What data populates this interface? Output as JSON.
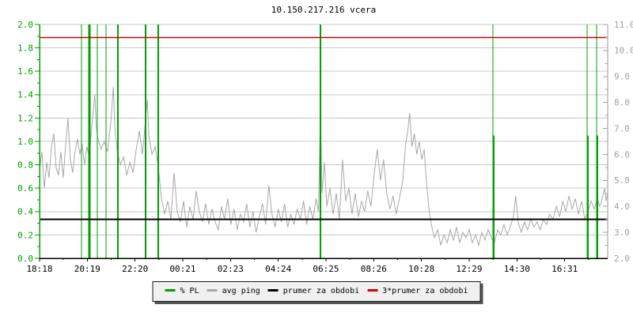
{
  "title": "10.150.217.216 vcera",
  "legend": {
    "items": [
      {
        "name": "pl",
        "label": "% PL",
        "color": "#00a000"
      },
      {
        "name": "avg-ping",
        "label": "avg ping",
        "color": "#a8a8a8"
      },
      {
        "name": "period-avg",
        "label": "prumer za obdobi",
        "color": "#000000"
      },
      {
        "name": "period-3avg",
        "label": "3*prumer za obdobi",
        "color": "#dd0000"
      }
    ]
  },
  "chart_data": {
    "type": "line",
    "title": "10.150.217.216 vcera",
    "grid": "horizontal gridlines only",
    "legend_position": "bottom center",
    "x_axis": {
      "start_time": "18:18",
      "total_minutes": 1440,
      "tick_interval_minutes": 121,
      "tick_labels": [
        "18:18",
        "20:19",
        "22:20",
        "00:21",
        "02:23",
        "04:24",
        "06:25",
        "08:26",
        "10:28",
        "12:29",
        "14:30",
        "16:31"
      ],
      "label_color": "#000000"
    },
    "y_left": {
      "units": "% packet loss",
      "min": 0.0,
      "max": 2.0,
      "major_step": 0.2,
      "minor_step": 0.1,
      "tick_labels": [
        "2.0",
        "1.8",
        "1.6",
        "1.4",
        "1.2",
        "1.0",
        "0.8",
        "0.6",
        "0.4",
        "0.2",
        "0.0"
      ],
      "color": "#00a000"
    },
    "y_right": {
      "units": "ms",
      "min": 2.0,
      "max": 11.0,
      "major_step": 1.0,
      "minor_step": 0.5,
      "tick_labels": [
        "11.0",
        "10.0",
        "9.0",
        "8.0",
        "7.0",
        "6.0",
        "5.0",
        "4.0",
        "3.0",
        "2.0"
      ],
      "color": "#a0a0a0"
    },
    "series": [
      {
        "name": "% PL",
        "type": "bar",
        "axis": "left",
        "color": "#00a000",
        "points_min_pct_width": [
          [
            106,
            2,
            1
          ],
          [
            126,
            2,
            3
          ],
          [
            146,
            2,
            1
          ],
          [
            168,
            2,
            1
          ],
          [
            199,
            2,
            2
          ],
          [
            269,
            2,
            2
          ],
          [
            301,
            2,
            2
          ],
          [
            712,
            2,
            2
          ],
          [
            1149,
            2,
            1
          ],
          [
            1151,
            1.05,
            2
          ],
          [
            1388,
            2,
            1
          ],
          [
            1390,
            1.05,
            2
          ],
          [
            1412,
            2,
            1
          ],
          [
            1414,
            1.05,
            2
          ]
        ]
      },
      {
        "name": "avg ping",
        "type": "line",
        "axis": "right",
        "color": "#a8a8a8",
        "points_min_ms": [
          [
            0,
            5.4
          ],
          [
            6,
            6.1
          ],
          [
            12,
            4.7
          ],
          [
            18,
            5.7
          ],
          [
            24,
            5.1
          ],
          [
            30,
            6.3
          ],
          [
            36,
            6.8
          ],
          [
            42,
            5.5
          ],
          [
            48,
            5.2
          ],
          [
            54,
            6.1
          ],
          [
            60,
            5.1
          ],
          [
            66,
            6.3
          ],
          [
            72,
            7.4
          ],
          [
            78,
            5.8
          ],
          [
            84,
            5.3
          ],
          [
            90,
            6.1
          ],
          [
            96,
            6.6
          ],
          [
            102,
            6.0
          ],
          [
            108,
            6.4
          ],
          [
            114,
            5.6
          ],
          [
            120,
            6.3
          ],
          [
            126,
            5.9
          ],
          [
            132,
            7.0
          ],
          [
            140,
            8.3
          ],
          [
            144,
            7.0
          ],
          [
            148,
            6.6
          ],
          [
            156,
            6.2
          ],
          [
            164,
            6.5
          ],
          [
            172,
            6.1
          ],
          [
            181,
            7.3
          ],
          [
            187,
            8.6
          ],
          [
            191,
            7.0
          ],
          [
            197,
            6.1
          ],
          [
            205,
            5.6
          ],
          [
            213,
            5.9
          ],
          [
            221,
            5.2
          ],
          [
            229,
            5.7
          ],
          [
            237,
            5.3
          ],
          [
            245,
            6.2
          ],
          [
            253,
            6.9
          ],
          [
            261,
            6.0
          ],
          [
            269,
            7.4
          ],
          [
            273,
            8.1
          ],
          [
            277,
            6.7
          ],
          [
            285,
            6.0
          ],
          [
            293,
            6.3
          ],
          [
            301,
            5.5
          ],
          [
            309,
            4.3
          ],
          [
            317,
            3.7
          ],
          [
            325,
            4.2
          ],
          [
            333,
            3.5
          ],
          [
            341,
            5.3
          ],
          [
            349,
            3.8
          ],
          [
            357,
            3.4
          ],
          [
            365,
            4.2
          ],
          [
            373,
            3.2
          ],
          [
            381,
            4.0
          ],
          [
            389,
            3.5
          ],
          [
            397,
            4.6
          ],
          [
            405,
            3.8
          ],
          [
            413,
            3.4
          ],
          [
            421,
            4.1
          ],
          [
            429,
            3.3
          ],
          [
            437,
            3.9
          ],
          [
            445,
            3.4
          ],
          [
            453,
            3.1
          ],
          [
            461,
            4.0
          ],
          [
            469,
            3.5
          ],
          [
            477,
            4.3
          ],
          [
            485,
            3.3
          ],
          [
            493,
            3.9
          ],
          [
            501,
            3.1
          ],
          [
            509,
            3.7
          ],
          [
            517,
            3.4
          ],
          [
            525,
            4.1
          ],
          [
            533,
            3.2
          ],
          [
            541,
            3.8
          ],
          [
            549,
            3.0
          ],
          [
            557,
            3.6
          ],
          [
            565,
            4.1
          ],
          [
            573,
            3.3
          ],
          [
            581,
            4.8
          ],
          [
            589,
            3.7
          ],
          [
            597,
            3.2
          ],
          [
            605,
            3.9
          ],
          [
            613,
            3.4
          ],
          [
            621,
            4.1
          ],
          [
            629,
            3.2
          ],
          [
            637,
            3.7
          ],
          [
            645,
            3.3
          ],
          [
            653,
            3.9
          ],
          [
            661,
            3.5
          ],
          [
            669,
            4.2
          ],
          [
            677,
            3.3
          ],
          [
            685,
            4.0
          ],
          [
            693,
            3.5
          ],
          [
            701,
            4.3
          ],
          [
            707,
            3.8
          ],
          [
            712,
            7.6
          ],
          [
            716,
            4.5
          ],
          [
            722,
            5.7
          ],
          [
            728,
            4.0
          ],
          [
            736,
            4.7
          ],
          [
            744,
            3.7
          ],
          [
            752,
            4.5
          ],
          [
            760,
            3.5
          ],
          [
            768,
            5.8
          ],
          [
            776,
            4.2
          ],
          [
            784,
            4.7
          ],
          [
            792,
            3.7
          ],
          [
            800,
            4.5
          ],
          [
            808,
            3.6
          ],
          [
            816,
            4.2
          ],
          [
            824,
            3.8
          ],
          [
            832,
            4.6
          ],
          [
            840,
            4.0
          ],
          [
            848,
            5.2
          ],
          [
            856,
            6.2
          ],
          [
            864,
            5.0
          ],
          [
            872,
            5.8
          ],
          [
            880,
            4.5
          ],
          [
            888,
            3.9
          ],
          [
            896,
            4.4
          ],
          [
            904,
            3.7
          ],
          [
            912,
            4.3
          ],
          [
            920,
            4.9
          ],
          [
            928,
            6.4
          ],
          [
            934,
            7.0
          ],
          [
            938,
            7.6
          ],
          [
            944,
            6.3
          ],
          [
            950,
            6.8
          ],
          [
            956,
            6.0
          ],
          [
            962,
            6.5
          ],
          [
            969,
            5.8
          ],
          [
            975,
            6.2
          ],
          [
            981,
            4.9
          ],
          [
            987,
            3.9
          ],
          [
            993,
            3.3
          ],
          [
            1001,
            2.8
          ],
          [
            1009,
            3.1
          ],
          [
            1017,
            2.5
          ],
          [
            1025,
            2.9
          ],
          [
            1033,
            2.6
          ],
          [
            1041,
            3.1
          ],
          [
            1049,
            2.7
          ],
          [
            1057,
            3.2
          ],
          [
            1065,
            2.6
          ],
          [
            1073,
            3.0
          ],
          [
            1081,
            2.8
          ],
          [
            1089,
            3.1
          ],
          [
            1097,
            2.6
          ],
          [
            1105,
            2.9
          ],
          [
            1113,
            2.5
          ],
          [
            1121,
            3.0
          ],
          [
            1129,
            2.7
          ],
          [
            1137,
            3.1
          ],
          [
            1145,
            2.8
          ],
          [
            1153,
            2.6
          ],
          [
            1161,
            3.1
          ],
          [
            1169,
            2.9
          ],
          [
            1177,
            3.3
          ],
          [
            1185,
            2.9
          ],
          [
            1193,
            3.2
          ],
          [
            1201,
            3.6
          ],
          [
            1207,
            4.4
          ],
          [
            1213,
            3.4
          ],
          [
            1221,
            3.0
          ],
          [
            1229,
            3.4
          ],
          [
            1237,
            3.1
          ],
          [
            1245,
            3.5
          ],
          [
            1253,
            3.2
          ],
          [
            1261,
            3.4
          ],
          [
            1269,
            3.1
          ],
          [
            1277,
            3.5
          ],
          [
            1285,
            3.3
          ],
          [
            1293,
            3.7
          ],
          [
            1301,
            3.5
          ],
          [
            1310,
            4.0
          ],
          [
            1318,
            3.6
          ],
          [
            1326,
            4.2
          ],
          [
            1334,
            3.8
          ],
          [
            1342,
            4.4
          ],
          [
            1350,
            3.9
          ],
          [
            1358,
            4.3
          ],
          [
            1366,
            3.7
          ],
          [
            1374,
            4.2
          ],
          [
            1382,
            3.5
          ],
          [
            1390,
            3.8
          ],
          [
            1398,
            4.2
          ],
          [
            1406,
            3.9
          ],
          [
            1414,
            4.3
          ],
          [
            1420,
            4.0
          ],
          [
            1426,
            4.3
          ],
          [
            1432,
            4.7
          ],
          [
            1436,
            4.2
          ],
          [
            1440,
            4.5
          ]
        ]
      },
      {
        "name": "prumer za obdobi",
        "type": "hline",
        "axis": "right",
        "color": "#000000",
        "value_ms": 3.5
      },
      {
        "name": "3*prumer za obdobi",
        "type": "hline",
        "axis": "right",
        "color": "#cc0000",
        "value_ms": 10.5
      }
    ],
    "colors": {
      "grid": "#c8c8c8",
      "left_axis": "#00a000",
      "right_axis_frame": "#999999",
      "bottom_axis": "#000000"
    }
  }
}
